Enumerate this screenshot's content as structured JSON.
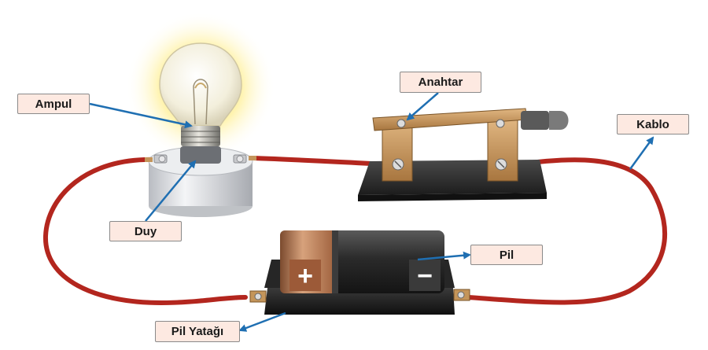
{
  "labels": {
    "bulb": "Ampul",
    "switch": "Anahtar",
    "wire": "Kablo",
    "socket": "Duy",
    "battery": "Pil",
    "battery_holder": "Pil Yatağı"
  },
  "battery_signs": {
    "positive": "+",
    "negative": "−"
  },
  "colors": {
    "wire": "#b3261e",
    "arrow": "#1f6fb2",
    "label_bg": "#fde9e1",
    "battery_copper": "#b0704a",
    "battery_dark": "#2b2b2b",
    "switch_brass": "#c4955a",
    "switch_base": "#2a2a2a",
    "bulb_glow": "#fff3a0"
  }
}
